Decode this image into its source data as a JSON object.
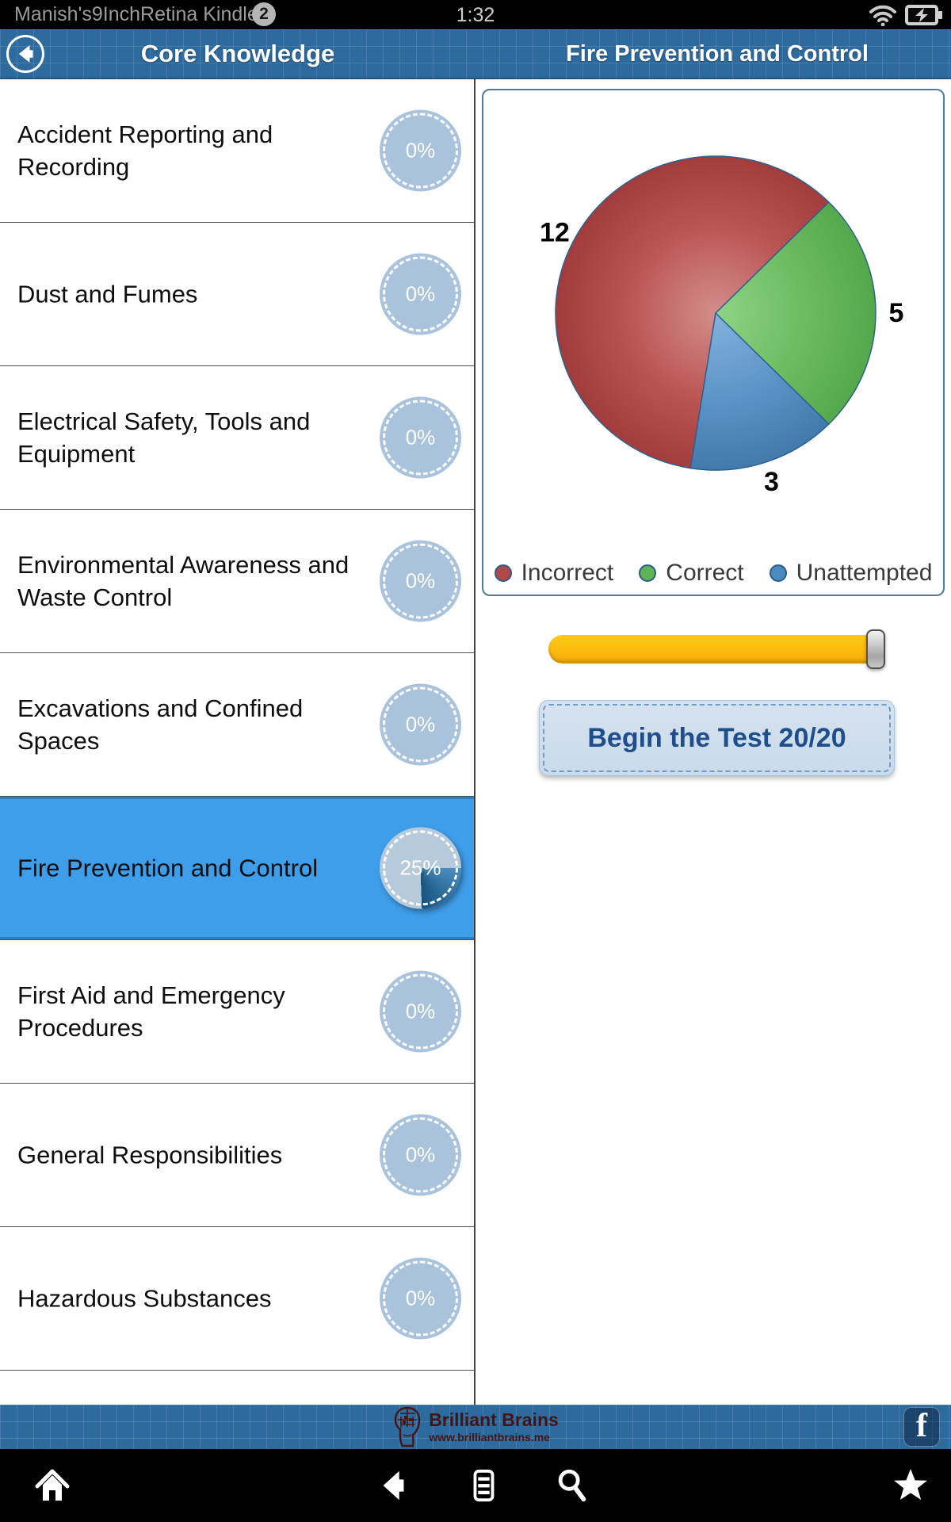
{
  "status_bar": {
    "device_name": "Manish's9InchRetina Kindle",
    "notification_count": "2",
    "time": "1:32",
    "icons": [
      "wifi-icon",
      "battery-charging-icon"
    ]
  },
  "app_bar": {
    "left_title": "Core Knowledge",
    "right_title": "Fire Prevention and Control",
    "back_icon": "back-arrow-icon"
  },
  "topics": [
    {
      "label": "Accident Reporting and Recording",
      "progress": "0%",
      "selected": false
    },
    {
      "label": "Dust and Fumes",
      "progress": "0%",
      "selected": false
    },
    {
      "label": "Electrical Safety, Tools and Equipment",
      "progress": "0%",
      "selected": false
    },
    {
      "label": "Environmental Awareness and Waste Control",
      "progress": "0%",
      "selected": false
    },
    {
      "label": "Excavations and Confined Spaces",
      "progress": "0%",
      "selected": false
    },
    {
      "label": "Fire Prevention and Control",
      "progress": "25%",
      "selected": true
    },
    {
      "label": "First Aid and Emergency Procedures",
      "progress": "0%",
      "selected": false
    },
    {
      "label": "General Responsibilities",
      "progress": "0%",
      "selected": false
    },
    {
      "label": "Hazardous Substances",
      "progress": "0%",
      "selected": false
    }
  ],
  "chart_data": {
    "type": "pie",
    "title": "",
    "total": 20,
    "start_angle_deg": 189,
    "legend_position": "bottom",
    "slices": [
      {
        "label": "Incorrect",
        "value": 12,
        "color": "#bb5553",
        "gradient_center": "#d28e8c",
        "gradient_edge": "#a23c3c"
      },
      {
        "label": "Correct",
        "value": 5,
        "color": "#6cbc62",
        "gradient_center": "#8fd386",
        "gradient_edge": "#54a84b"
      },
      {
        "label": "Unattempted",
        "value": 3,
        "color": "#5b94c8",
        "gradient_center": "#85b2dc",
        "gradient_edge": "#4279ab"
      }
    ],
    "legend_dot_colors": {
      "Incorrect": "#b14a47",
      "Correct": "#5cb455",
      "Unattempted": "#4b8ac0"
    }
  },
  "controls": {
    "begin_button_label": "Begin the Test 20/20",
    "slider_fraction_full": true
  },
  "footer": {
    "brand_name": "Brilliant Brains",
    "brand_url": "www.brilliantbrains.me",
    "facebook_label": "f",
    "brand_logo_icon": "brain-head-icon"
  },
  "nav_bar": {
    "items": [
      "home-icon",
      "back-icon",
      "menu-icon",
      "search-icon",
      "star-icon"
    ]
  }
}
